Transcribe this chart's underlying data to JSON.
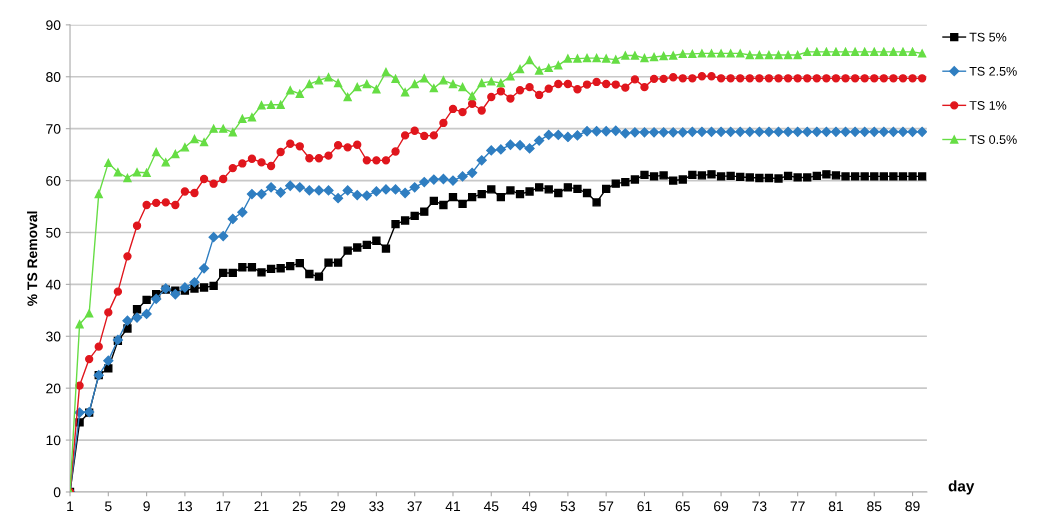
{
  "chart_data": {
    "type": "line",
    "ylabel": "% TS Removal",
    "xlabel": "day",
    "x": [
      1,
      2,
      3,
      4,
      5,
      6,
      7,
      8,
      9,
      10,
      11,
      12,
      13,
      14,
      15,
      16,
      17,
      18,
      19,
      20,
      21,
      22,
      23,
      24,
      25,
      26,
      27,
      28,
      29,
      30,
      31,
      32,
      33,
      34,
      35,
      36,
      37,
      38,
      39,
      40,
      41,
      42,
      43,
      44,
      45,
      46,
      47,
      48,
      49,
      50,
      51,
      52,
      53,
      54,
      55,
      56,
      57,
      58,
      59,
      60,
      61,
      62,
      63,
      64,
      65,
      66,
      67,
      68,
      69,
      70,
      71,
      72,
      73,
      74,
      75,
      76,
      77,
      78,
      79,
      80,
      81,
      82,
      83,
      84,
      85,
      86,
      87,
      88,
      89,
      90
    ],
    "xlim": [
      1,
      90.5
    ],
    "xticks": [
      1,
      5,
      9,
      13,
      17,
      21,
      25,
      29,
      33,
      37,
      41,
      45,
      49,
      53,
      57,
      61,
      65,
      69,
      73,
      77,
      81,
      85,
      89
    ],
    "ylim": [
      0,
      90
    ],
    "yticks": [
      0,
      10,
      20,
      30,
      40,
      50,
      60,
      70,
      80,
      90
    ],
    "grid": "y",
    "legend": "top right",
    "series": [
      {
        "name": "TS 5%",
        "color": "#000000",
        "marker": "square",
        "values": [
          0,
          13.4,
          15.3,
          22.5,
          23.8,
          29.1,
          31.5,
          35.2,
          37,
          38.1,
          39,
          38.8,
          38.8,
          39.2,
          39.4,
          39.7,
          42.2,
          42.2,
          43.3,
          43.3,
          42.3,
          43,
          43.1,
          43.5,
          44.1,
          42,
          41.5,
          44.2,
          44.2,
          46.5,
          47.1,
          47.6,
          48.4,
          46.9,
          51.6,
          52.3,
          53.2,
          54,
          56.1,
          55.3,
          56.8,
          55.5,
          56.8,
          57.4,
          58.3,
          56.8,
          58.1,
          57.4,
          57.9,
          58.7,
          58.3,
          57.6,
          58.7,
          58.4,
          57.6,
          55.8,
          58.4,
          59.4,
          59.7,
          60.2,
          61.1,
          60.8,
          61,
          60,
          60.2,
          61.1,
          61,
          61.2,
          60.8,
          60.9,
          60.7,
          60.6,
          60.5,
          60.5,
          60.4,
          60.9,
          60.6,
          60.6,
          60.9,
          61.2,
          61,
          60.8,
          60.8,
          60.8,
          60.8,
          60.8,
          60.8,
          60.8,
          60.8,
          60.8
        ]
      },
      {
        "name": "TS 2.5%",
        "color": "#2f7ec1",
        "marker": "diamond",
        "values": [
          0,
          15.3,
          15.4,
          22.5,
          25.3,
          29.3,
          33,
          33.6,
          34.3,
          37.2,
          39.2,
          38.1,
          39.4,
          40.4,
          43.1,
          49.1,
          49.3,
          52.6,
          53.9,
          57.4,
          57.4,
          58.7,
          57.7,
          59,
          58.7,
          58.1,
          58.1,
          58.1,
          56.6,
          58.1,
          57.2,
          57.1,
          57.9,
          58.3,
          58.3,
          57.6,
          58.7,
          59.7,
          60.2,
          60.3,
          60,
          60.8,
          61.5,
          63.9,
          65.8,
          66,
          66.9,
          66.8,
          66.2,
          67.7,
          68.8,
          68.8,
          68.4,
          68.7,
          69.5,
          69.5,
          69.5,
          69.6,
          69.1,
          69.3,
          69.3,
          69.3,
          69.3,
          69.3,
          69.3,
          69.4,
          69.4,
          69.4,
          69.4,
          69.4,
          69.4,
          69.4,
          69.4,
          69.4,
          69.4,
          69.4,
          69.4,
          69.4,
          69.4,
          69.4,
          69.4,
          69.4,
          69.4,
          69.4,
          69.4,
          69.4,
          69.4,
          69.4,
          69.4,
          69.4
        ]
      },
      {
        "name": "TS 1%",
        "color": "#e0161d",
        "marker": "circle",
        "values": [
          0,
          20.5,
          25.6,
          28,
          34.6,
          38.6,
          45.4,
          51.3,
          55.3,
          55.7,
          55.8,
          55.3,
          57.9,
          57.6,
          60.3,
          59.4,
          60.3,
          62.4,
          63.3,
          64.2,
          63.5,
          62.8,
          65.5,
          67.1,
          66.6,
          64.3,
          64.3,
          64.8,
          66.8,
          66.4,
          66.9,
          63.9,
          63.9,
          63.9,
          65.6,
          68.7,
          69.6,
          68.6,
          68.7,
          71.1,
          73.8,
          73.2,
          74.8,
          73.5,
          76.1,
          77.2,
          75.8,
          77.4,
          78,
          76.5,
          77.7,
          78.6,
          78.6,
          77.6,
          78.5,
          79,
          78.6,
          78.5,
          77.9,
          79.5,
          78,
          79.6,
          79.6,
          79.9,
          79.7,
          79.7,
          80.1,
          80.1,
          79.7,
          79.7,
          79.7,
          79.7,
          79.7,
          79.7,
          79.7,
          79.7,
          79.7,
          79.7,
          79.7,
          79.7,
          79.7,
          79.7,
          79.7,
          79.7,
          79.7,
          79.7,
          79.7,
          79.7,
          79.7,
          79.7
        ]
      },
      {
        "name": "TS 0.5%",
        "color": "#66dd44",
        "marker": "triangle",
        "values": [
          0,
          32.3,
          34.4,
          57.4,
          63.4,
          61.6,
          60.5,
          61.6,
          61.5,
          65.5,
          63.5,
          65.1,
          66.4,
          68,
          67.4,
          70,
          70,
          69.3,
          71.9,
          72.2,
          74.5,
          74.6,
          74.6,
          77.4,
          76.7,
          78.6,
          79.3,
          79.9,
          78.8,
          76.1,
          78,
          78.6,
          77.6,
          80.9,
          79.6,
          77,
          78.6,
          79.7,
          77.8,
          79.3,
          78.6,
          78,
          76.3,
          78.8,
          79.1,
          78.8,
          80.1,
          81.5,
          83.2,
          81.2,
          81.7,
          82.2,
          83.5,
          83.5,
          83.6,
          83.6,
          83.5,
          83.3,
          84.1,
          84.1,
          83.6,
          83.8,
          84,
          84.1,
          84.4,
          84.4,
          84.5,
          84.5,
          84.5,
          84.5,
          84.5,
          84.2,
          84.2,
          84.2,
          84.2,
          84.2,
          84.2,
          84.8,
          84.8,
          84.8,
          84.8,
          84.8,
          84.8,
          84.8,
          84.8,
          84.8,
          84.8,
          84.8,
          84.8,
          84.5
        ]
      }
    ]
  }
}
